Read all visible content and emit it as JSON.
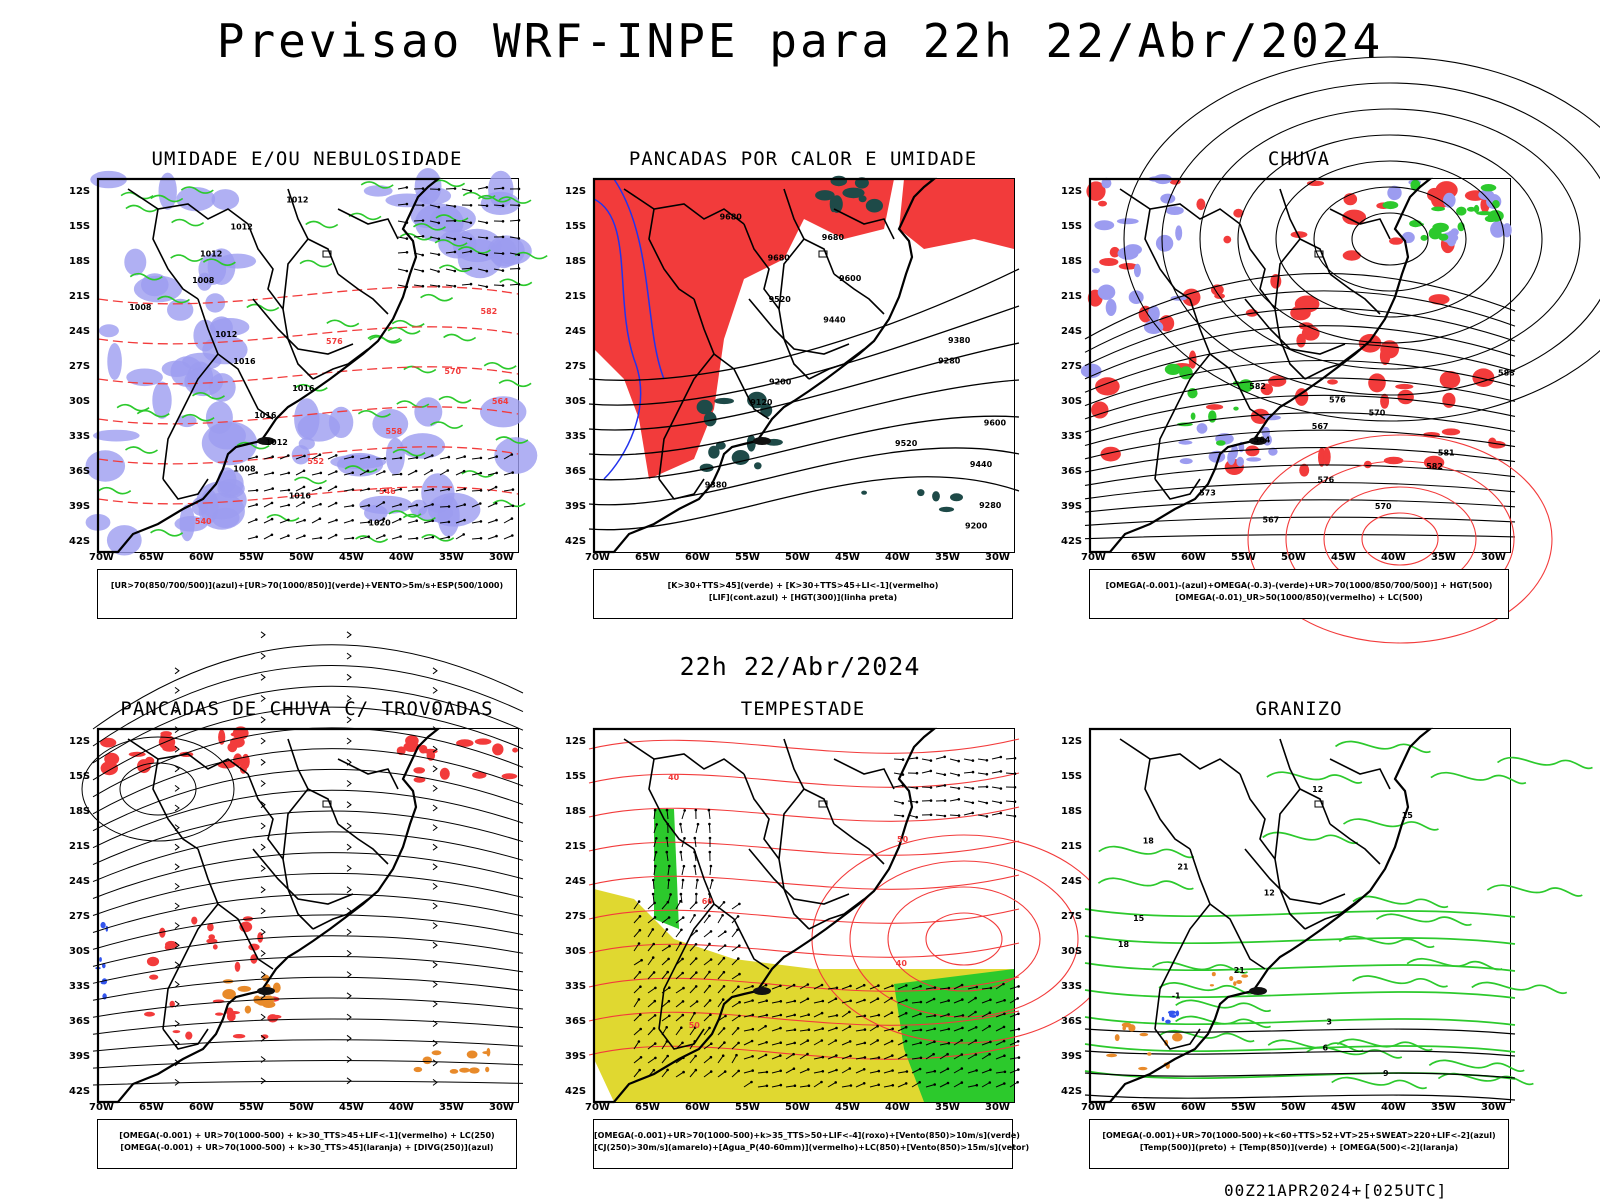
{
  "title": "Previsao WRF-INPE  para 22h 22/Abr/2024",
  "subtitle": "22h 22/Abr/2024",
  "footer": "00Z21APR2024+[025UTC]",
  "lat_ticks": [
    "12S",
    "15S",
    "18S",
    "21S",
    "24S",
    "27S",
    "30S",
    "33S",
    "36S",
    "39S",
    "42S"
  ],
  "lon_ticks": [
    "70W",
    "65W",
    "60W",
    "55W",
    "50W",
    "45W",
    "40W",
    "35W",
    "30W"
  ],
  "colors": {
    "blue": "#9c9cf0",
    "green": "#2cc92c",
    "red": "#f23b3b",
    "yellow": "#e0d830",
    "orange": "#e88a2a",
    "darkteal": "#1e4a48"
  },
  "panels": [
    {
      "title": "UMIDADE E/OU NEBULOSIDADE",
      "legend": [
        "[UR>70(850/700/500)](azul)+[UR>70(1000/850)](verde)+VENTO>5m/s+ESP(500/1000)"
      ],
      "labels": [
        "1012",
        "1012",
        "1012",
        "1008",
        "1008",
        "1012",
        "1016",
        "1016",
        "1016",
        "1012",
        "1008",
        "1016",
        "1020",
        "582",
        "576",
        "570",
        "564",
        "558",
        "552",
        "546",
        "540"
      ]
    },
    {
      "title": "PANCADAS POR CALOR E UMIDADE",
      "legend": [
        "[K>30+TTS>45](verde) + [K>30+TTS>45+LI<-1](vermelho)",
        "[LIF](cont.azul) + [HGT(300)](linha preta)"
      ],
      "labels": [
        "9680",
        "9680",
        "9680",
        "9600",
        "9520",
        "9440",
        "9380",
        "9280",
        "9200",
        "9120",
        "9600",
        "9520",
        "9440",
        "9380",
        "9280",
        "9200"
      ]
    },
    {
      "title": "CHUVA",
      "legend": [
        "[OMEGA(-0.001)-(azul)+OMEGA(-0.3)-(verde)+UR>70(1000/850/700/500)] + HGT(500)",
        "[OMEGA(-0.01)_UR>50(1000/850)(vermelho) + LC(500)"
      ],
      "labels": [
        "588",
        "582",
        "576",
        "570",
        "567",
        "564",
        "581",
        "582",
        "576",
        "573",
        "570",
        "567"
      ]
    },
    {
      "title": "PANCADAS DE CHUVA C/ TROVOADAS",
      "legend": [
        "[OMEGA(-0.001) + UR>70(1000-500) + k>30_TTS>45+LIF<-1](vermelho) + LC(250)",
        "[OMEGA(-0.001) + UR>70(1000-500) + k>30_TTS>45](laranja) + [DIVG(250)](azul)"
      ],
      "labels": []
    },
    {
      "title": "TEMPESTADE",
      "legend": [
        "[OMEGA(-0.001)+UR>70(1000-500)+k>35_TTS>50+LIF<-4](roxo)+[Vento(850)>10m/s](verde)",
        "[CJ(250)>30m/s](amarelo)+[Agua_P(40-60mm)](vermelho)+LC(850)+[Vento(850)>15m/s](vetor)"
      ],
      "labels": [
        "40",
        "50",
        "60",
        "40",
        "50"
      ]
    },
    {
      "title": "GRANIZO",
      "legend": [
        "[OMEGA(-0.001)+UR>70(1000-500)+k<60+TTS>52+VT>25+SWEAT>220+LIF<-2](azul)",
        "[Temp(500)](preto) + [Temp(850)](verde) + [OMEGA(500)<-2](laranja)"
      ],
      "labels": [
        "12",
        "15",
        "18",
        "21",
        "12",
        "15",
        "18",
        "21",
        "-1",
        "3",
        "6",
        "9"
      ]
    }
  ]
}
